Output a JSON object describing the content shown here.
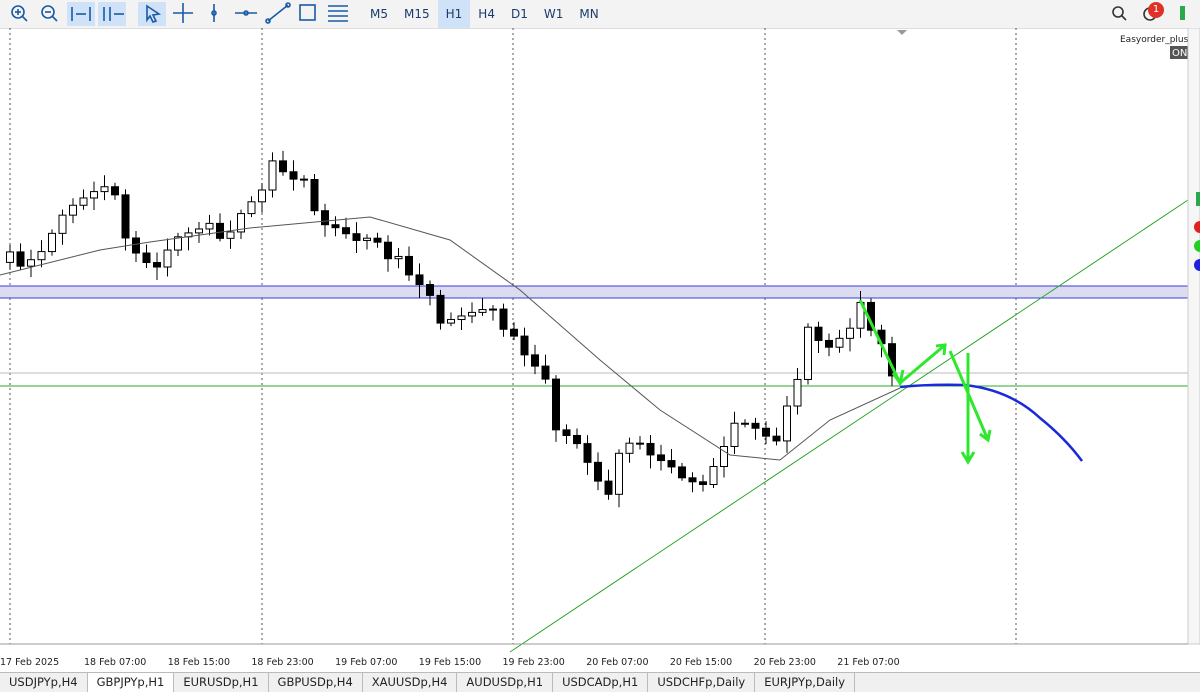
{
  "toolbar": {
    "timeframes": [
      "M5",
      "M15",
      "H1",
      "H4",
      "D1",
      "W1",
      "MN"
    ],
    "notification_count": "1"
  },
  "chart": {
    "indicator_label": "Easyorder_plus_t",
    "indicator_state": "ON",
    "time_labels": [
      "17 Feb 2025",
      "18 Feb 07:00",
      "18 Feb 15:00",
      "18 Feb 23:00",
      "19 Feb 07:00",
      "19 Feb 15:00",
      "19 Feb 23:00",
      "20 Feb 07:00",
      "20 Feb 15:00",
      "20 Feb 23:00",
      "21 Feb 07:00"
    ]
  },
  "tabs": [
    "USDJPYp,H4",
    "GBPJPYp,H1",
    "EURUSDp,H1",
    "GBPUSDp,H4",
    "XAUUSDp,H4",
    "AUDUSDp,H1",
    "USDCADp,H1",
    "USDCHFp,Daily",
    "EURJPYp,Daily"
  ]
}
